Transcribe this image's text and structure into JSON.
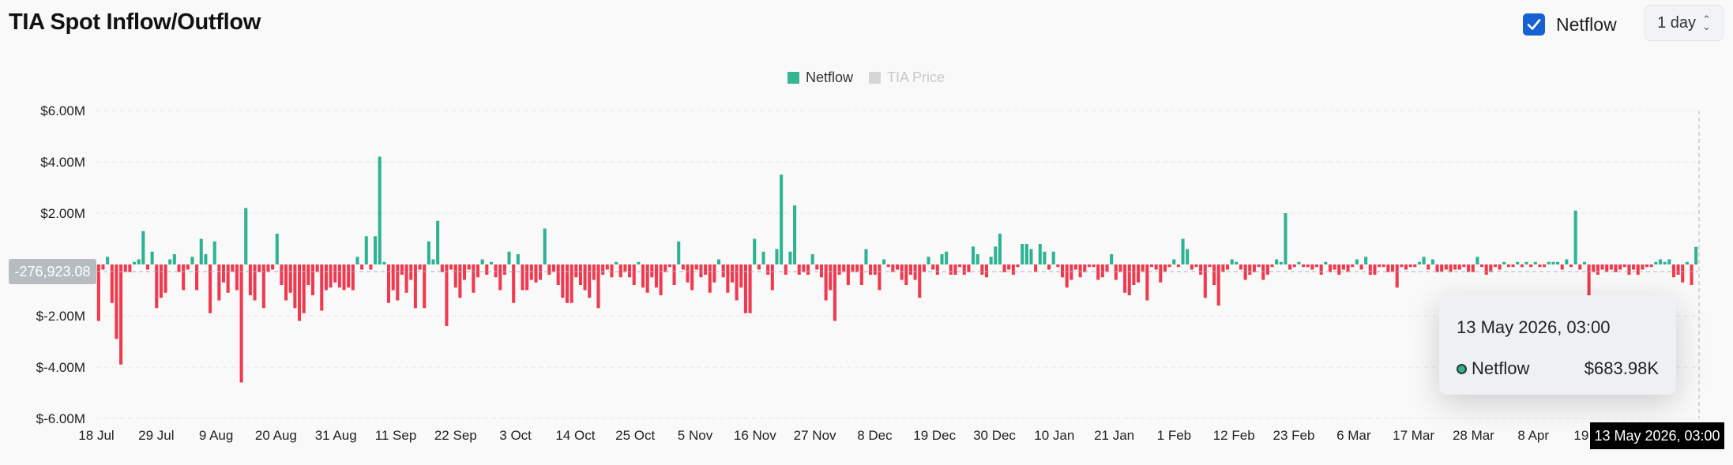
{
  "header": {
    "title": "TIA Spot Inflow/Outflow",
    "netflow_toggle": {
      "label": "Netflow",
      "checked": true
    },
    "interval_select": {
      "value": "1 day"
    }
  },
  "legend": [
    {
      "name": "Netflow",
      "color": "#36b594",
      "active": true
    },
    {
      "name": "TIA Price",
      "color": "#d6d6d6",
      "active": false
    }
  ],
  "tooltip": {
    "date": "13 May 2026, 03:00",
    "series": "Netflow",
    "value": "$683.98K"
  },
  "crosshair": {
    "x_label": "13 May 2026, 03:00",
    "y_label": "-276,923.08"
  },
  "colors": {
    "positive": "#2db392",
    "negative": "#f0394f",
    "grid": "#e6e6e6"
  },
  "chart_data": {
    "type": "bar",
    "series_name": "Netflow",
    "ylim": [
      -6000000,
      6000000
    ],
    "y_ticks": [
      {
        "value": 6000000,
        "label": "$6.00M"
      },
      {
        "value": 4000000,
        "label": "$4.00M"
      },
      {
        "value": 2000000,
        "label": "$2.00M"
      },
      {
        "value": -2000000,
        "label": "$-2.00M"
      },
      {
        "value": -4000000,
        "label": "$-4.00M"
      },
      {
        "value": -6000000,
        "label": "$-6.00M"
      }
    ],
    "x_ticks": [
      "18 Jul",
      "29 Jul",
      "9 Aug",
      "20 Aug",
      "31 Aug",
      "11 Sep",
      "22 Sep",
      "3 Oct",
      "14 Oct",
      "25 Oct",
      "5 Nov",
      "16 Nov",
      "27 Nov",
      "8 Dec",
      "19 Dec",
      "30 Dec",
      "10 Jan",
      "21 Jan",
      "1 Feb",
      "12 Feb",
      "23 Feb",
      "6 Mar",
      "17 Mar",
      "28 Mar",
      "8 Apr",
      "19 Apr"
    ],
    "values": [
      -2200000,
      -200000,
      300000,
      -1500000,
      -2900000,
      -3900000,
      -300000,
      -300000,
      100000,
      200000,
      1300000,
      -200000,
      500000,
      -1700000,
      -1300000,
      -1100000,
      200000,
      400000,
      -300000,
      -1000000,
      -200000,
      300000,
      -1000000,
      1000000,
      400000,
      -1900000,
      900000,
      -1400000,
      -700000,
      -1100000,
      -300000,
      -1000000,
      -4600000,
      2200000,
      -1200000,
      -1400000,
      -300000,
      -1700000,
      -300000,
      -200000,
      1200000,
      -800000,
      -1400000,
      -1100000,
      -1700000,
      -2200000,
      -1900000,
      -800000,
      -1200000,
      -300000,
      -1800000,
      -1000000,
      -900000,
      -700000,
      -900000,
      -1000000,
      -900000,
      -1000000,
      300000,
      -200000,
      1100000,
      -200000,
      1100000,
      4200000,
      100000,
      -1500000,
      -1000000,
      -1400000,
      -400000,
      -1100000,
      -600000,
      -1700000,
      -200000,
      -1700000,
      900000,
      200000,
      1700000,
      -300000,
      -2400000,
      -200000,
      -900000,
      -1300000,
      -600000,
      -200000,
      -1100000,
      -500000,
      200000,
      -400000,
      100000,
      -500000,
      -1000000,
      -400000,
      500000,
      -1500000,
      400000,
      -1000000,
      -1000000,
      -600000,
      -700000,
      -600000,
      1400000,
      -400000,
      -300000,
      -800000,
      -1300000,
      -1500000,
      -1500000,
      -500000,
      -800000,
      -1000000,
      -1300000,
      -600000,
      -1700000,
      -400000,
      -200000,
      -500000,
      100000,
      -500000,
      -300000,
      -500000,
      -800000,
      100000,
      -900000,
      -1100000,
      -500000,
      -900000,
      -1200000,
      -300000,
      -100000,
      -800000,
      900000,
      -200000,
      -700000,
      -1000000,
      -200000,
      -500000,
      -400000,
      -1100000,
      -700000,
      200000,
      -500000,
      -1100000,
      -700000,
      -1400000,
      -900000,
      -1900000,
      -1900000,
      1000000,
      -200000,
      500000,
      -400000,
      -1000000,
      600000,
      3500000,
      -400000,
      500000,
      2300000,
      -400000,
      -300000,
      -400000,
      400000,
      -200000,
      -500000,
      -1400000,
      -1000000,
      -2200000,
      -400000,
      -300000,
      -800000,
      -300000,
      -300000,
      -800000,
      600000,
      -400000,
      -400000,
      -1000000,
      200000,
      -100000,
      -300000,
      -200000,
      -600000,
      -800000,
      -400000,
      -600000,
      -1300000,
      -300000,
      300000,
      -200000,
      -400000,
      400000,
      500000,
      -400000,
      -400000,
      -100000,
      -400000,
      -300000,
      700000,
      400000,
      -400000,
      -500000,
      300000,
      700000,
      1200000,
      -300000,
      -200000,
      -400000,
      -100000,
      800000,
      800000,
      600000,
      -300000,
      800000,
      500000,
      -200000,
      500000,
      -100000,
      -500000,
      -900000,
      -600000,
      -200000,
      -500000,
      -300000,
      -100000,
      -100000,
      -600000,
      -500000,
      -300000,
      400000,
      -600000,
      -300000,
      -1100000,
      -1200000,
      -800000,
      -700000,
      -300000,
      -1400000,
      -100000,
      -200000,
      -700000,
      -300000,
      -100000,
      200000,
      -100000,
      1000000,
      600000,
      -200000,
      -100000,
      -400000,
      -1300000,
      -100000,
      -800000,
      -1600000,
      -300000,
      -200000,
      200000,
      100000,
      -200000,
      -600000,
      -400000,
      -300000,
      -100000,
      -600000,
      -400000,
      -100000,
      200000,
      100000,
      2000000,
      -200000,
      -100000,
      100000,
      -100000,
      -100000,
      -200000,
      -100000,
      -400000,
      100000,
      -300000,
      -200000,
      -400000,
      -200000,
      -300000,
      -100000,
      200000,
      -200000,
      300000,
      -400000,
      -400000,
      -100000,
      -100000,
      -300000,
      -300000,
      -900000,
      -100000,
      -200000,
      -100000,
      -100000,
      100000,
      300000,
      -200000,
      200000,
      -300000,
      -300000,
      -200000,
      -300000,
      -200000,
      -200000,
      -100000,
      -300000,
      -300000,
      300000,
      -100000,
      -400000,
      -300000,
      -100000,
      -200000,
      100000,
      -100000,
      -100000,
      100000,
      -100000,
      100000,
      -100000,
      100000,
      -100000,
      -100000,
      100000,
      100000,
      100000,
      -200000,
      200000,
      -100000,
      2100000,
      -200000,
      100000,
      -1300000,
      -300000,
      -400000,
      -200000,
      -300000,
      -200000,
      -300000,
      -200000,
      -100000,
      -400000,
      -200000,
      -400000,
      -200000,
      -100000,
      -100000,
      100000,
      200000,
      100000,
      200000,
      -500000,
      -400000,
      -700000,
      100000,
      -800000,
      684000
    ]
  }
}
